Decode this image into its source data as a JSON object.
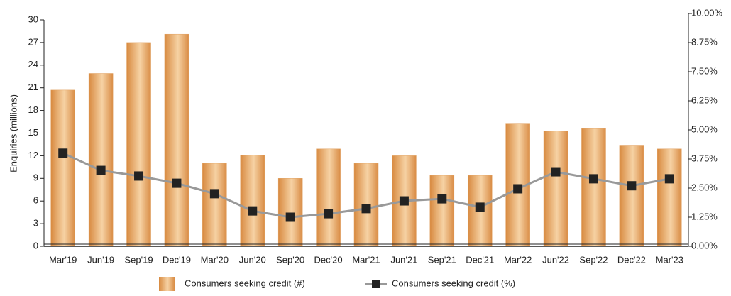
{
  "chart_data": {
    "type": "bar",
    "ylabel": "Enquiries (millions)",
    "categories": [
      "Mar'19",
      "Jun'19",
      "Sep'19",
      "Dec'19",
      "Mar'20",
      "Jun'20",
      "Sep'20",
      "Dec'20",
      "Mar'21",
      "Jun'21",
      "Sep'21",
      "Dec'21",
      "Mar'22",
      "Jun'22",
      "Sep'22",
      "Dec'22",
      "Mar'23"
    ],
    "series": [
      {
        "name": "Consumers seeking credit (#)",
        "type": "bar",
        "color": "#e0a060",
        "values": [
          20.7,
          22.9,
          27.0,
          28.1,
          11.0,
          12.1,
          9.0,
          12.9,
          11.0,
          12.0,
          9.4,
          9.4,
          16.3,
          15.3,
          15.6,
          13.4,
          12.9
        ]
      },
      {
        "name": "Consumers seeking credit (%)",
        "type": "line",
        "axis": "y2",
        "color": "#999999",
        "marker_color": "#222222",
        "values": [
          4.0,
          3.26,
          3.02,
          2.71,
          2.26,
          1.52,
          1.25,
          1.4,
          1.62,
          1.95,
          2.04,
          1.68,
          2.47,
          3.2,
          2.9,
          2.6,
          2.9
        ]
      }
    ],
    "ylim": [
      0,
      30
    ],
    "yticks": [
      0,
      3,
      6,
      9,
      12,
      15,
      18,
      21,
      24,
      27,
      30
    ],
    "y2lim": [
      0,
      10
    ],
    "y2ticks": [
      {
        "value": 0,
        "label": "0.00%"
      },
      {
        "value": 1.25,
        "label": "1.25%"
      },
      {
        "value": 2.5,
        "label": "2.50%"
      },
      {
        "value": 3.75,
        "label": "3.75%"
      },
      {
        "value": 5,
        "label": "5.00%"
      },
      {
        "value": 6.25,
        "label": "6.25%"
      },
      {
        "value": 7.5,
        "label": "7.50%"
      },
      {
        "value": 8.75,
        "label": "8.75%"
      },
      {
        "value": 10,
        "label": "10.00%"
      }
    ],
    "legend": "bottom"
  }
}
